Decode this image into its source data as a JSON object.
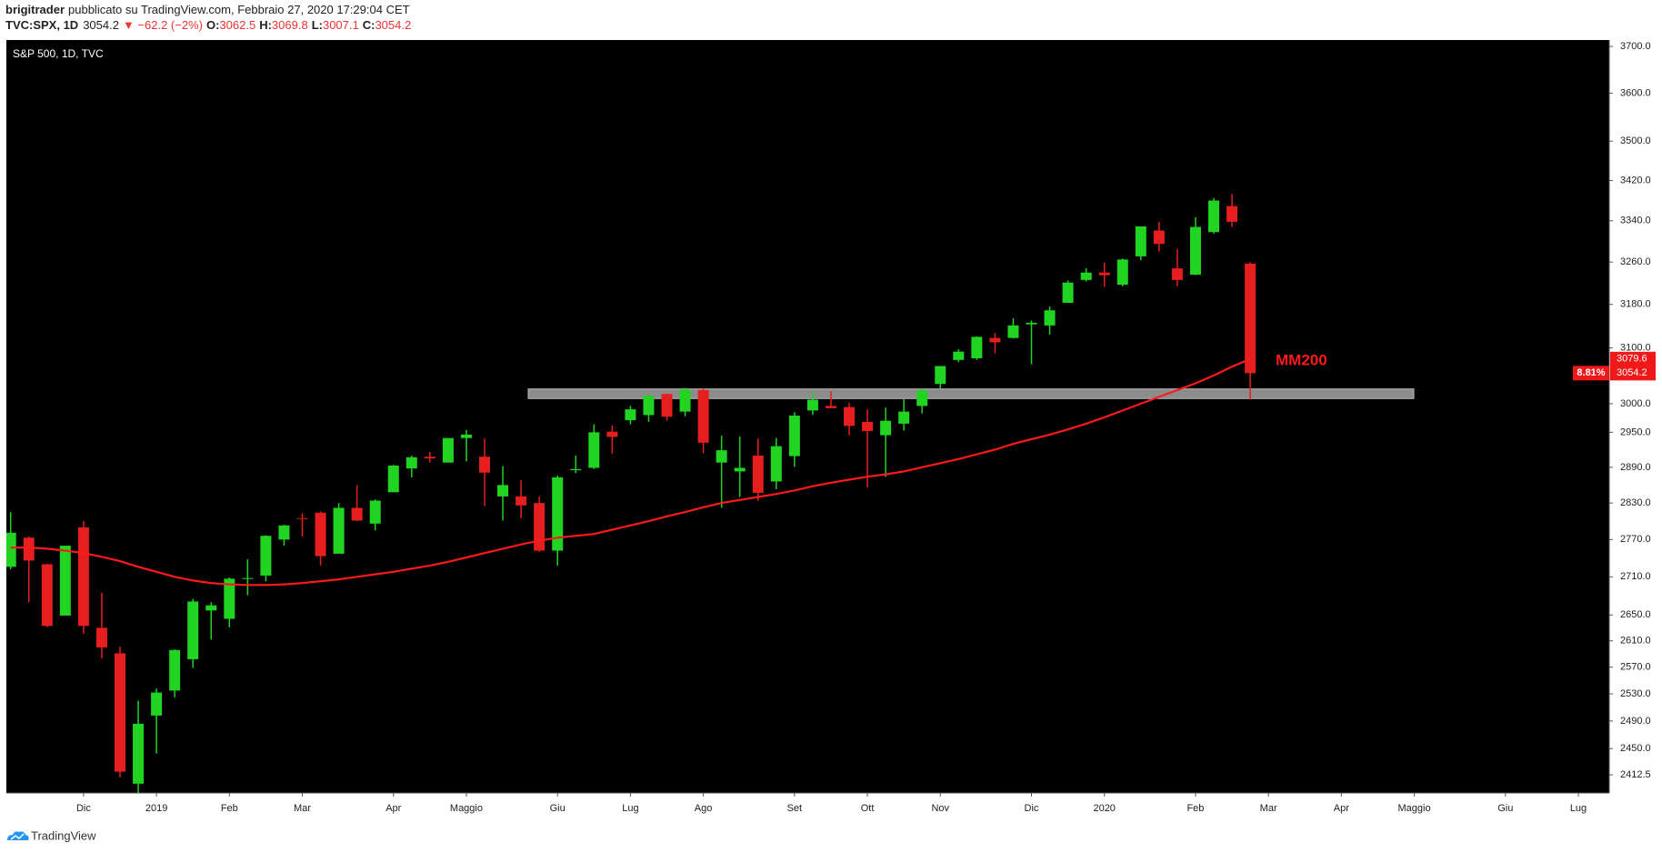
{
  "header": {
    "author": "brigitrader",
    "published": "pubblicato su TradingView.com, Febbraio 27, 2020 17:29:04 CET",
    "symbol": "TVC:SPX, 1D",
    "last": "3054.2",
    "change": "▼ −62.2 (−2%)",
    "ohlc": [
      {
        "label": "O:",
        "value": "3062.5"
      },
      {
        "label": "H:",
        "value": "3069.8"
      },
      {
        "label": "L:",
        "value": "3007.1"
      },
      {
        "label": "C:",
        "value": "3054.2"
      }
    ]
  },
  "footer": {
    "brand": "TradingView"
  },
  "chart_data": {
    "type": "candlestick",
    "title": "S&P 500, 1D, TVC",
    "log_scale": true,
    "grid": false,
    "up_color": "#22d422",
    "down_color": "#e61e1e",
    "ma_color": "#ff1a1a",
    "zone_color": "#8c8c8c",
    "categories": [
      null,
      null,
      null,
      null,
      "Dic",
      null,
      null,
      null,
      "2019",
      null,
      null,
      null,
      "Feb",
      null,
      null,
      null,
      "Mar",
      null,
      null,
      null,
      null,
      "Apr",
      null,
      null,
      null,
      "Maggio",
      null,
      null,
      null,
      null,
      "Giu",
      null,
      null,
      null,
      "Lug",
      null,
      null,
      null,
      "Ago",
      null,
      null,
      null,
      null,
      "Set",
      null,
      null,
      null,
      "Ott",
      null,
      null,
      null,
      "Nov",
      null,
      null,
      null,
      null,
      "Dic",
      null,
      null,
      null,
      "2020",
      null,
      null,
      null,
      null,
      "Feb",
      null,
      null,
      null,
      "Mar",
      null,
      null,
      null,
      "Apr",
      null,
      null,
      null,
      "Maggio",
      null,
      null,
      null,
      null,
      "Giu",
      null,
      null,
      null,
      "Lug",
      null
    ],
    "open": [
      2726,
      2773,
      2730,
      2649,
      2790,
      2630,
      2591,
      2400,
      2498,
      2535,
      2582,
      2657,
      2644,
      2707,
      2712,
      2770,
      2805,
      2814,
      2747,
      2822,
      2796,
      2848,
      2888,
      2908,
      2898,
      2940,
      2908,
      2841,
      2841,
      2830,
      2752,
      2885,
      2889,
      2951,
      2971,
      2980,
      3017,
      2986,
      3024,
      2898,
      2883,
      2910,
      2866,
      2909,
      2988,
      2996,
      2994,
      2968,
      2945,
      2965,
      2996,
      3035,
      3078,
      3081,
      3118,
      3118,
      3143,
      3141,
      3183,
      3226,
      3240,
      3217,
      3271,
      3321,
      3248,
      3236,
      3318,
      3369,
      3257,
      null,
      null,
      null,
      null,
      null,
      null,
      null,
      null,
      null,
      null,
      null,
      null,
      null,
      null,
      null,
      null,
      null,
      null,
      null
    ],
    "high": [
      2815,
      2775,
      2731,
      2760,
      2800,
      2685,
      2601,
      2520,
      2538,
      2597,
      2675,
      2670,
      2709,
      2738,
      2777,
      2794,
      2813,
      2816,
      2830,
      2860,
      2836,
      2894,
      2910,
      2916,
      2940,
      2954,
      2939,
      2892,
      2868,
      2841,
      2876,
      2910,
      2964,
      2962,
      2996,
      3014,
      3018,
      3028,
      3027,
      2944,
      2943,
      2939,
      2940,
      2985,
      3021,
      3022,
      3002,
      2990,
      2993,
      3008,
      3027,
      3067,
      3097,
      3121,
      3127,
      3154,
      3150,
      3176,
      3225,
      3248,
      3259,
      3267,
      3329,
      3338,
      3285,
      3347,
      3385,
      3393,
      3260,
      null,
      null,
      null,
      null,
      null,
      null,
      null,
      null,
      null,
      null,
      null,
      null,
      null,
      null,
      null,
      null,
      null,
      null,
      null
    ],
    "low": [
      2722,
      2670,
      2631,
      2649,
      2621,
      2583,
      2409,
      2347,
      2443,
      2525,
      2569,
      2612,
      2631,
      2681,
      2703,
      2760,
      2775,
      2728,
      2747,
      2800,
      2785,
      2848,
      2873,
      2898,
      2898,
      2900,
      2825,
      2801,
      2805,
      2750,
      2728,
      2880,
      2887,
      2913,
      2964,
      2968,
      2970,
      2978,
      2914,
      2822,
      2840,
      2834,
      2853,
      2891,
      2980,
      2993,
      2945,
      2856,
      2874,
      2953,
      2983,
      3027,
      3074,
      3078,
      3090,
      3117,
      3070,
      3124,
      3183,
      3223,
      3213,
      3214,
      3264,
      3280,
      3214,
      3235,
      3315,
      3328,
      3007.1,
      null,
      null,
      null,
      null,
      null,
      null,
      null,
      null,
      null,
      null,
      null,
      null,
      null,
      null,
      null,
      null,
      null,
      null,
      null
    ],
    "close": [
      2781,
      2736,
      2633,
      2760,
      2633,
      2600,
      2417,
      2486,
      2532,
      2596,
      2671,
      2665,
      2707,
      2708,
      2776,
      2793,
      2804,
      2743,
      2822,
      2801,
      2834,
      2893,
      2907,
      2905,
      2940,
      2946,
      2881,
      2860,
      2826,
      2752,
      2873,
      2887,
      2950,
      2942,
      2990,
      3014,
      2977,
      3025,
      2932,
      2919,
      2889,
      2847,
      2926,
      2979,
      3007,
      2992,
      2961,
      2952,
      2970,
      2986,
      3023,
      3067,
      3093,
      3120,
      3110,
      3141,
      3146,
      3169,
      3221,
      3240,
      3235,
      3265,
      3329,
      3295,
      3226,
      3328,
      3380,
      3338,
      3054.2,
      null,
      null,
      null,
      null,
      null,
      null,
      null,
      null,
      null,
      null,
      null,
      null,
      null,
      null,
      null,
      null,
      null,
      null,
      null
    ],
    "ma200": [
      2757,
      2757,
      2755,
      2752,
      2748,
      2742,
      2735,
      2726,
      2718,
      2710,
      2704,
      2700,
      2698,
      2697,
      2697,
      2698,
      2700,
      2703,
      2706,
      2710,
      2714,
      2718,
      2723,
      2728,
      2734,
      2741,
      2748,
      2755,
      2762,
      2768,
      2773,
      2776,
      2779,
      2786,
      2793,
      2800,
      2808,
      2815,
      2823,
      2830,
      2835,
      2840,
      2845,
      2851,
      2858,
      2864,
      2869,
      2874,
      2878,
      2883,
      2890,
      2897,
      2904,
      2912,
      2920,
      2930,
      2938,
      2946,
      2955,
      2965,
      2976,
      2988,
      3000,
      3012,
      3024,
      3036,
      3050,
      3066,
      3079.6,
      null,
      null,
      null,
      null,
      null,
      null,
      null,
      null,
      null,
      null,
      null,
      null,
      null,
      null,
      null,
      null,
      null,
      null,
      null
    ],
    "ma_label": "MM200",
    "distance_label": "8.81%",
    "zone": {
      "low": 3009,
      "high": 3026
    },
    "ylim": [
      2387,
      3714
    ],
    "yticks": [
      {
        "value": 3700,
        "label": "3700.0"
      },
      {
        "value": 3600,
        "label": "3600.0"
      },
      {
        "value": 3500,
        "label": "3500.0"
      },
      {
        "value": 3420,
        "label": "3420.0"
      },
      {
        "value": 3340,
        "label": "3340.0"
      },
      {
        "value": 3260,
        "label": "3260.0"
      },
      {
        "value": 3180,
        "label": "3180.0"
      },
      {
        "value": 3100,
        "label": "3100.0"
      },
      {
        "value": 3000,
        "label": "3000.0"
      },
      {
        "value": 2950,
        "label": "2950.0"
      },
      {
        "value": 2890,
        "label": "2890.0"
      },
      {
        "value": 2830,
        "label": "2830.0"
      },
      {
        "value": 2770,
        "label": "2770.0"
      },
      {
        "value": 2710,
        "label": "2710.0"
      },
      {
        "value": 2650,
        "label": "2650.0"
      },
      {
        "value": 2610,
        "label": "2610.0"
      },
      {
        "value": 2570,
        "label": "2570.0"
      },
      {
        "value": 2530,
        "label": "2530.0"
      },
      {
        "value": 2490,
        "label": "2490.0"
      },
      {
        "value": 2450,
        "label": "2450.0"
      },
      2412.5
    ]
  }
}
